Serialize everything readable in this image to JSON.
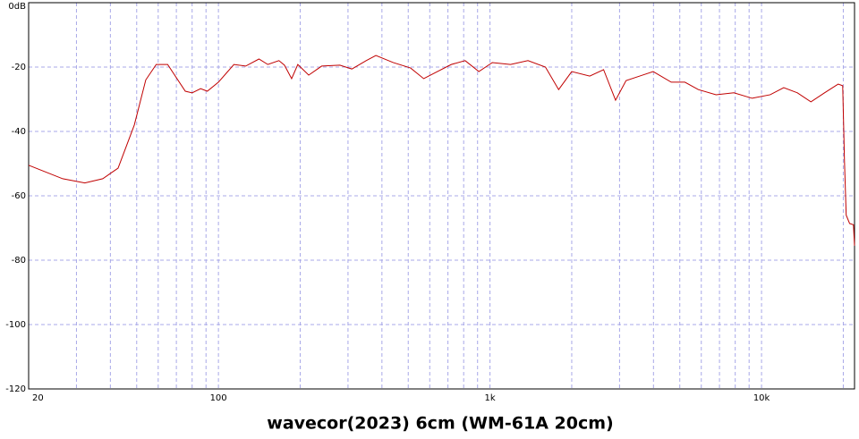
{
  "chart_data": {
    "type": "line",
    "title": "wavecor(2023) 6cm (WM-61A 20cm)",
    "x": [
      20,
      26.7,
      32.2,
      37.5,
      42.7,
      49,
      54,
      59,
      65,
      75.5,
      80,
      86,
      91,
      100,
      114,
      126,
      141,
      152,
      167,
      175,
      186,
      196,
      215,
      240,
      280,
      310,
      350,
      380,
      440,
      510,
      570,
      640,
      720,
      810,
      910,
      1020,
      1190,
      1380,
      1600,
      1790,
      2000,
      2330,
      2620,
      2900,
      3170,
      3560,
      3990,
      4650,
      5220,
      5850,
      6800,
      7910,
      9230,
      10760,
      12070,
      13550,
      15200,
      17060,
      19150,
      19900,
      20200,
      20500,
      21100,
      21800,
      22000
    ],
    "series": [
      {
        "name": "wavecor(2023) 6cm",
        "color": "#c00000",
        "values": [
          -50.5,
          -54.7,
          -56,
          -54.7,
          -51.4,
          -38,
          -24,
          -19.2,
          -19.2,
          -27.5,
          -28,
          -26.7,
          -27.5,
          -24.7,
          -19.2,
          -19.7,
          -17.5,
          -19.2,
          -18,
          -19.4,
          -23.6,
          -19.2,
          -22.5,
          -19.7,
          -19.4,
          -20.6,
          -18,
          -16.4,
          -18.6,
          -20.3,
          -23.6,
          -21.4,
          -19.2,
          -18,
          -21.4,
          -18.6,
          -19.2,
          -18,
          -20,
          -27,
          -21.4,
          -22.8,
          -20.8,
          -30.3,
          -24.2,
          -22.8,
          -21.4,
          -24.7,
          -24.7,
          -27,
          -28.6,
          -28,
          -29.7,
          -28.6,
          -26.4,
          -28,
          -30.8,
          -28,
          -25.3,
          -25.8,
          -49,
          -66,
          -68.6,
          -69,
          -75.5
        ]
      }
    ],
    "xlog": true,
    "xlim": [
      20,
      22000
    ],
    "xticks": [
      20,
      100,
      {
        "value": 1000,
        "label": "1k"
      },
      {
        "value": 10000,
        "label": "10k"
      }
    ],
    "xgrid": [
      30,
      40,
      50,
      60,
      70,
      80,
      90,
      200,
      300,
      400,
      500,
      600,
      700,
      800,
      900,
      2000,
      3000,
      4000,
      5000,
      6000,
      7000,
      8000,
      9000,
      20000
    ],
    "ylim": [
      -120,
      0
    ],
    "yticks": [
      {
        "value": 0,
        "label": "0dB"
      },
      -20,
      -40,
      -60,
      -80,
      -100,
      -120
    ],
    "grid": true
  }
}
